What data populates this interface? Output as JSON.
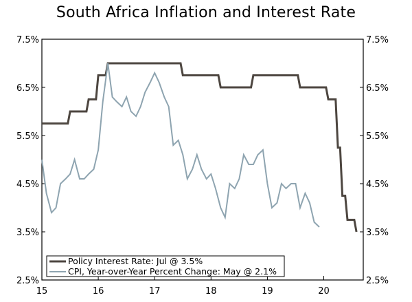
{
  "chart_data": {
    "type": "line",
    "title": "South Africa Inflation and Interest Rate",
    "xlabel": "",
    "ylabel": "",
    "xlim": [
      15,
      20.7
    ],
    "ylim": [
      2.5,
      7.5
    ],
    "x_ticks": [
      15,
      16,
      17,
      18,
      19,
      20
    ],
    "x_tick_labels": [
      "15",
      "16",
      "17",
      "18",
      "19",
      "20"
    ],
    "y_ticks": [
      2.5,
      3.5,
      4.5,
      5.5,
      6.5,
      7.5
    ],
    "y_tick_labels": [
      "2.5%",
      "3.5%",
      "4.5%",
      "5.5%",
      "6.5%",
      "7.5%"
    ],
    "legend_position": "bottom-left",
    "series": [
      {
        "name": "Policy Interest Rate: Jul @ 3.5%",
        "color": "#4d4640",
        "x": [
          15.0,
          15.42,
          15.5,
          15.75,
          15.83,
          15.92,
          16.0,
          16.08,
          16.17,
          17.42,
          17.5,
          18.08,
          18.17,
          18.67,
          18.75,
          19.5,
          19.58,
          20.0,
          20.08,
          20.17,
          20.25,
          20.33,
          20.42,
          20.5,
          20.58
        ],
        "values": [
          5.75,
          5.75,
          6.0,
          6.0,
          6.25,
          6.25,
          6.75,
          6.75,
          7.0,
          7.0,
          6.75,
          6.75,
          6.5,
          6.5,
          6.75,
          6.75,
          6.5,
          6.5,
          6.25,
          6.25,
          5.25,
          4.25,
          3.75,
          3.75,
          3.5
        ]
      },
      {
        "name": "CPI, Year-over-Year Percent Change: May @ 2.1%",
        "color": "#8ea4b0",
        "x": [
          15.0,
          15.08,
          15.17,
          15.25,
          15.33,
          15.42,
          15.5,
          15.58,
          15.67,
          15.75,
          15.83,
          15.92,
          16.0,
          16.08,
          16.17,
          16.25,
          16.33,
          16.42,
          16.5,
          16.58,
          16.67,
          16.75,
          16.83,
          16.92,
          17.0,
          17.08,
          17.17,
          17.25,
          17.33,
          17.42,
          17.5,
          17.58,
          17.67,
          17.75,
          17.83,
          17.92,
          18.0,
          18.08,
          18.17,
          18.25,
          18.33,
          18.42,
          18.5,
          18.58,
          18.67,
          18.75,
          18.83,
          18.92,
          19.0,
          19.08,
          19.17,
          19.25,
          19.33,
          19.42,
          19.5,
          19.58,
          19.67,
          19.75,
          19.83,
          19.92
        ],
        "values": [
          5.0,
          4.3,
          3.9,
          4.0,
          4.5,
          4.6,
          4.7,
          5.0,
          4.6,
          4.6,
          4.7,
          4.8,
          5.2,
          6.2,
          7.0,
          6.3,
          6.2,
          6.1,
          6.3,
          6.0,
          5.9,
          6.1,
          6.4,
          6.6,
          6.8,
          6.6,
          6.3,
          6.1,
          5.3,
          5.4,
          5.1,
          4.6,
          4.8,
          5.1,
          4.8,
          4.6,
          4.7,
          4.4,
          4.0,
          3.8,
          4.5,
          4.4,
          4.6,
          5.1,
          4.9,
          4.9,
          5.1,
          5.2,
          4.5,
          4.0,
          4.1,
          4.5,
          4.4,
          4.5,
          4.5,
          4.0,
          4.3,
          4.1,
          3.7,
          3.6
        ]
      }
    ]
  }
}
